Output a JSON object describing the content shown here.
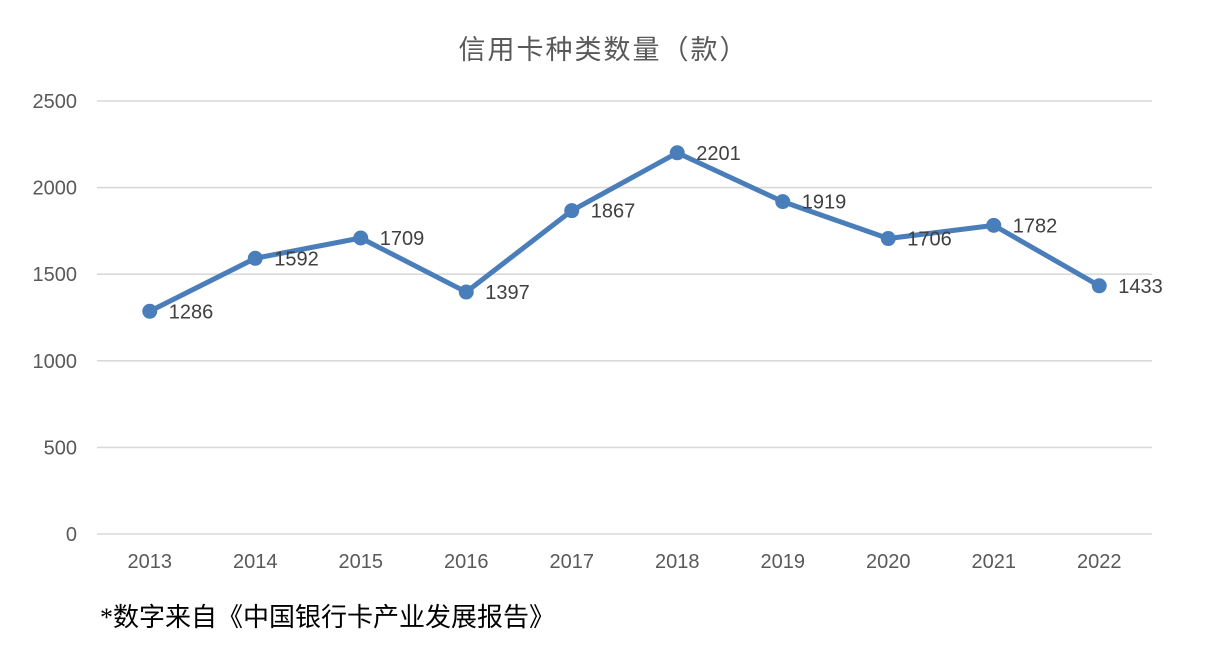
{
  "chart_data": {
    "type": "line",
    "title": "信用卡种类数量（款）",
    "categories": [
      "2013",
      "2014",
      "2015",
      "2016",
      "2017",
      "2018",
      "2019",
      "2020",
      "2021",
      "2022"
    ],
    "values": [
      1286,
      1592,
      1709,
      1397,
      1867,
      2201,
      1919,
      1706,
      1782,
      1433
    ],
    "xlabel": "",
    "ylabel": "",
    "ylim": [
      0,
      2500
    ],
    "yticks": [
      0,
      500,
      1000,
      1500,
      2000,
      2500
    ],
    "grid": true,
    "legend_position": "none",
    "data_label_position": "right",
    "footnote": "*数字来自《中国银行卡产业发展报告》",
    "colors": {
      "line": "#4A7EBB",
      "marker": "#4A7EBB",
      "gridline": "#D9D9D9",
      "tick_label": "#595959",
      "data_label": "#404040",
      "title": "#595959",
      "footnote": "#000000"
    }
  }
}
